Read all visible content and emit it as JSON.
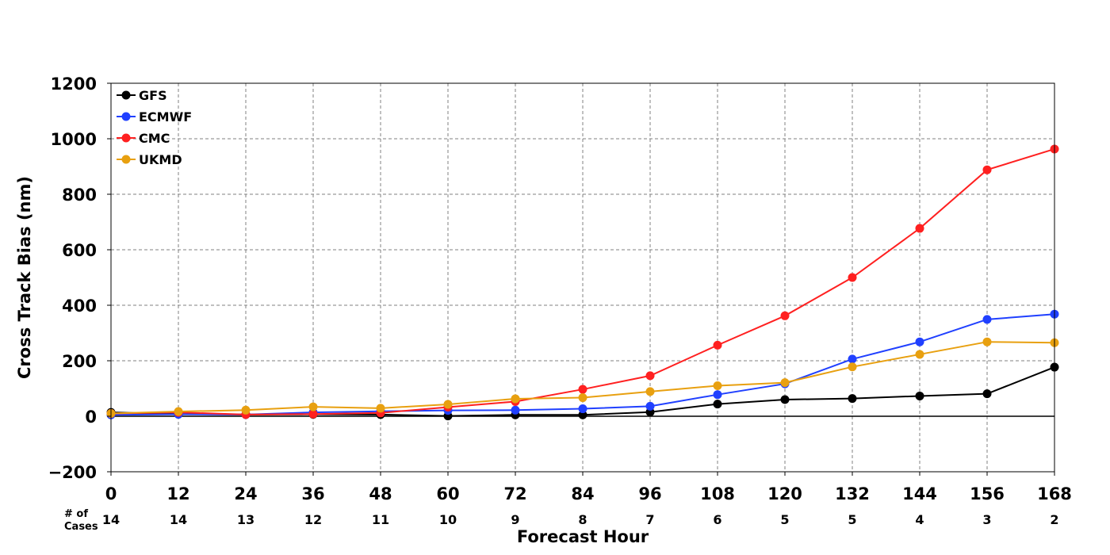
{
  "chart_data": {
    "type": "line",
    "title": "",
    "xlabel": "Forecast Hour",
    "ylabel": "Cross Track Bias (nm)",
    "x": [
      0,
      12,
      24,
      36,
      48,
      60,
      72,
      84,
      96,
      108,
      120,
      132,
      144,
      156,
      168
    ],
    "xlim": [
      0,
      168
    ],
    "ylim": [
      -200,
      1200
    ],
    "yticks": [
      -200,
      0,
      200,
      400,
      600,
      800,
      1000,
      1200
    ],
    "ytick_labels": [
      "−200",
      "0",
      "200",
      "400",
      "600",
      "800",
      "1000",
      "1200"
    ],
    "grid": true,
    "legend_position": "top-left",
    "cases_label_line1": "# of",
    "cases_label_line2": "Cases",
    "cases": [
      14,
      14,
      13,
      12,
      11,
      10,
      9,
      8,
      7,
      6,
      5,
      5,
      4,
      3,
      2
    ],
    "zero_line": true,
    "series": [
      {
        "name": "GFS",
        "color": "#000000",
        "values": [
          14,
          8,
          6,
          7,
          6,
          1,
          5,
          5,
          15,
          44,
          60,
          64,
          73,
          81,
          177
        ]
      },
      {
        "name": "ECMWF",
        "color": "#2040ff",
        "values": [
          5,
          7,
          6,
          14,
          18,
          21,
          22,
          27,
          36,
          78,
          117,
          206,
          268,
          349,
          368
        ]
      },
      {
        "name": "CMC",
        "color": "#ff2020",
        "values": [
          10,
          14,
          6,
          8,
          12,
          33,
          53,
          97,
          146,
          256,
          362,
          500,
          677,
          888,
          963
        ]
      },
      {
        "name": "UKMD",
        "color": "#e8a010",
        "values": [
          10,
          17,
          22,
          34,
          29,
          43,
          63,
          67,
          89,
          110,
          121,
          178,
          223,
          268,
          265
        ]
      }
    ]
  }
}
